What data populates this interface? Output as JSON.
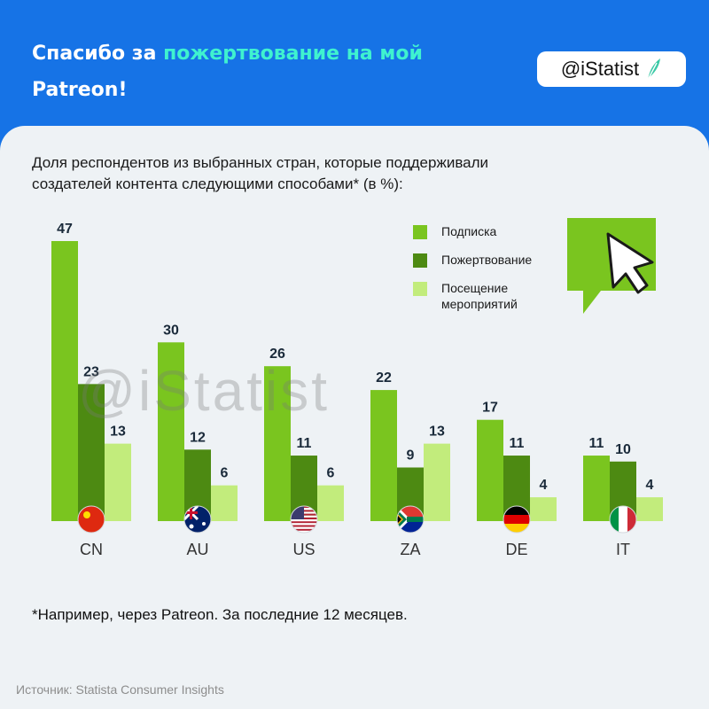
{
  "header": {
    "title_plain": "Спасибо за ",
    "title_accent": "пожертвование на мой",
    "title_line2": "Patreon!",
    "brand": "@iStatist",
    "brand_icon": "feather-icon"
  },
  "colors": {
    "header_bg": "#1673e6",
    "accent": "#3ff2cf",
    "series": [
      "#7ac51f",
      "#4d8a12",
      "#c2ec7c"
    ]
  },
  "watermark": "@iStatist",
  "footnote": "*Например, через Patreon. За последние 12 месяцев.",
  "source": "Источник: Statista Consumer Insights",
  "decoration": {
    "icon": "cursor-speech-bubble-icon"
  },
  "chart_data": {
    "type": "bar",
    "title": "Доля респондентов из выбранных стран, которые поддерживали создателей контента следующими способами* (в %):",
    "categories": [
      "CN",
      "AU",
      "US",
      "ZA",
      "DE",
      "IT"
    ],
    "flags": [
      "china-flag-icon",
      "australia-flag-icon",
      "usa-flag-icon",
      "south-africa-flag-icon",
      "germany-flag-icon",
      "italy-flag-icon"
    ],
    "series": [
      {
        "name": "Подписка",
        "values": [
          47,
          30,
          26,
          22,
          17,
          11
        ]
      },
      {
        "name": "Пожертвование",
        "values": [
          23,
          12,
          11,
          9,
          11,
          10
        ]
      },
      {
        "name": "Посещение мероприятий",
        "values": [
          13,
          6,
          6,
          13,
          4,
          4
        ]
      }
    ],
    "ylim": [
      0,
      47
    ],
    "legend_position": "top-right",
    "grid": false
  }
}
